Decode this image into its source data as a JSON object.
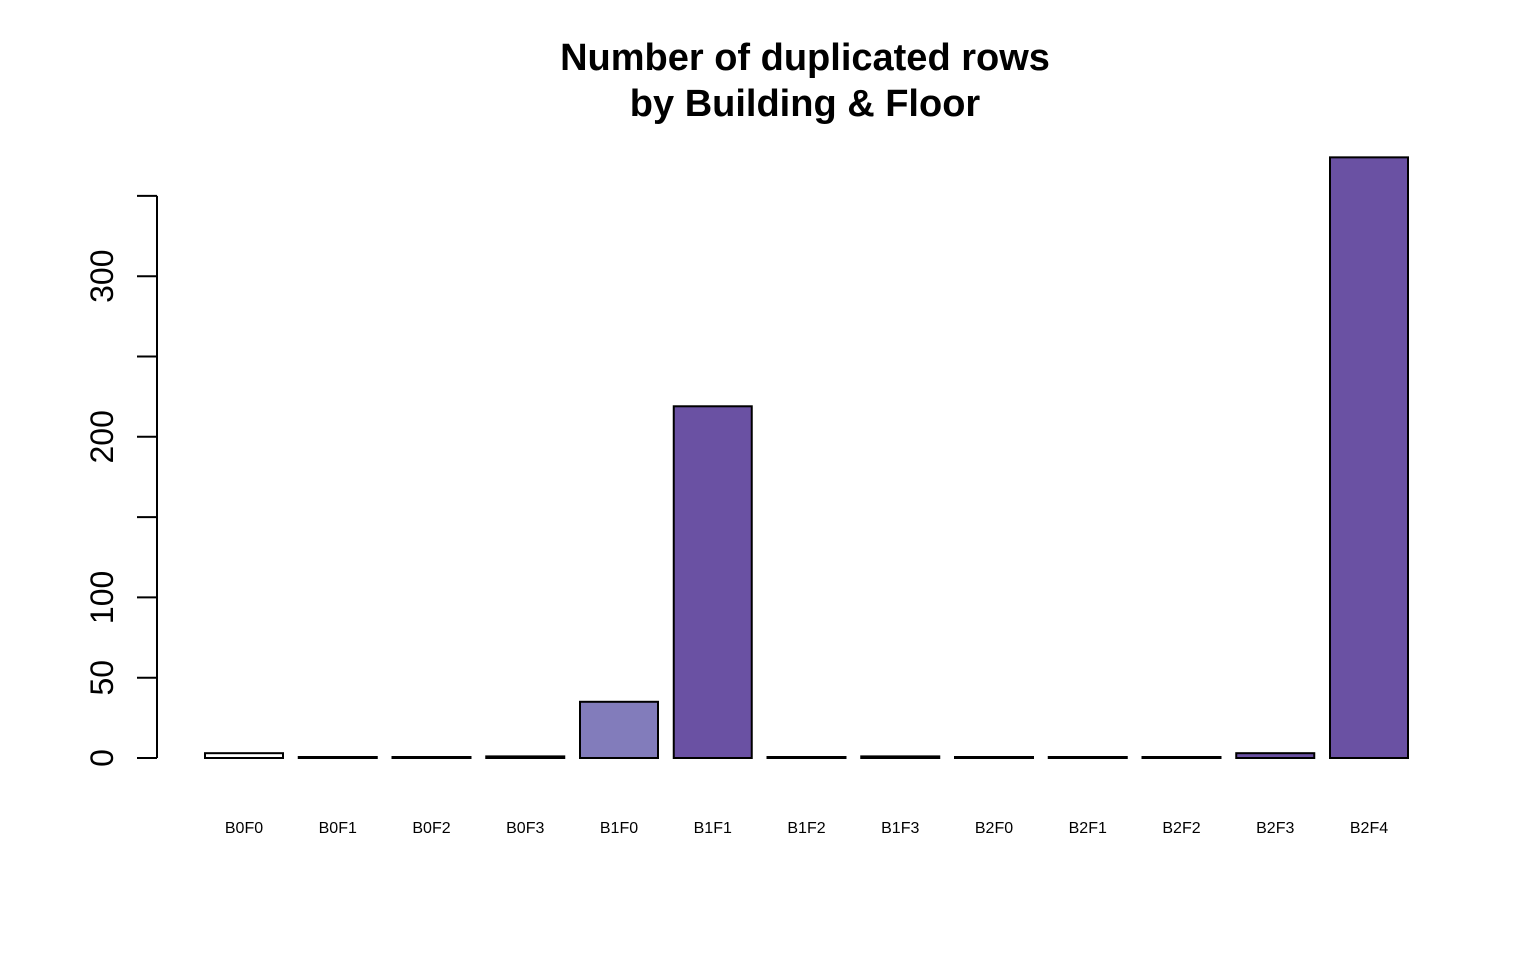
{
  "chart_data": {
    "type": "bar",
    "title": "Number of duplicated rows",
    "subtitle": "by Building & Floor",
    "xlabel": "",
    "ylabel": "",
    "categories": [
      "B0F0",
      "B0F1",
      "B0F2",
      "B0F3",
      "B1F0",
      "B1F1",
      "B1F2",
      "B1F3",
      "B2F0",
      "B2F1",
      "B2F2",
      "B2F3",
      "B2F4"
    ],
    "values": [
      3,
      0,
      0,
      1,
      35,
      219,
      0,
      1,
      0,
      0,
      0,
      3,
      374
    ],
    "ylim": [
      0,
      350
    ],
    "yticks": [
      0,
      50,
      100,
      150,
      200,
      250,
      300,
      350
    ],
    "ytick_labels": [
      "0",
      "50",
      "100",
      "",
      "200",
      "",
      "300",
      ""
    ],
    "colors": [
      "#ffffff",
      "#ffffff",
      "#ffffff",
      "#3a3a3a",
      "#827cbb",
      "#6a51a3",
      "#ffffff",
      "#3a3a3a",
      "#ffffff",
      "#ffffff",
      "#ffffff",
      "#6a51a3",
      "#6a51a3"
    ],
    "border_color": "#000000",
    "grid": false,
    "legend": "none"
  }
}
